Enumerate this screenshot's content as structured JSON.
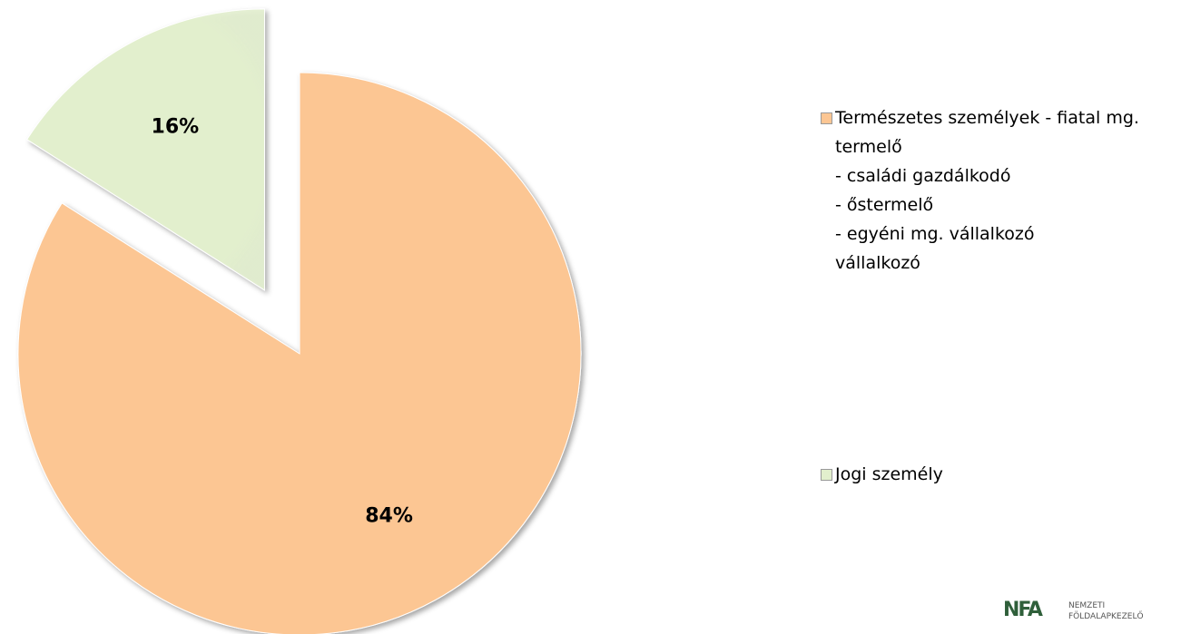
{
  "chart_data": {
    "type": "pie",
    "categories": [
      "Természetes személyek - fiatal mg. termelő\n- családi gazdálkodó\n- őstermelő\n- egyéni mg. vállalkozó\nvállalkozó",
      "Jogi személy"
    ],
    "values": [
      84,
      16
    ],
    "value_labels": [
      "84%",
      "16%"
    ],
    "colors": [
      "#fcc693",
      "#e2efcd"
    ],
    "legend": "right"
  },
  "logo": {
    "mark": "NFA",
    "text": "NEMZETI\nFÖLDALAPKEZELŐ"
  }
}
